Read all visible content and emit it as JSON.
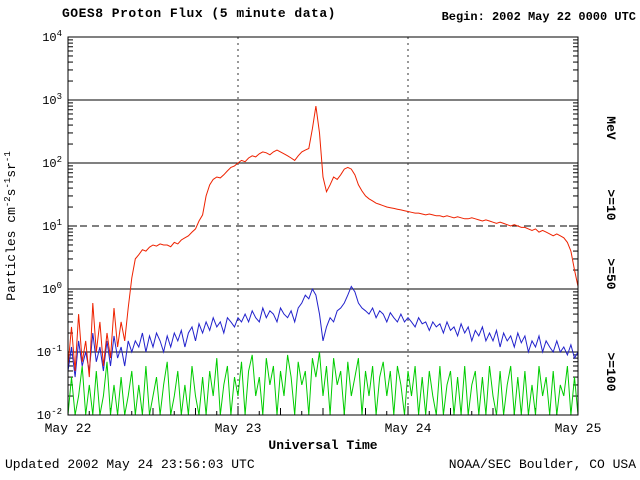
{
  "header": {
    "title": "GOES8 Proton Flux (5 minute data)",
    "begin": "Begin: 2002 May 22 0000 UTC"
  },
  "footer": {
    "updated": "Updated 2002 May 24 23:56:03 UTC",
    "credit": "NOAA/SEC Boulder, CO USA"
  },
  "chart_data": {
    "type": "line",
    "title": "GOES8 Proton Flux (5 minute data)",
    "xlabel": "Universal Time",
    "ylabel_parts": [
      {
        "t": "Particles cm",
        "sup": false
      },
      {
        "t": "-2",
        "sup": true
      },
      {
        "t": "s",
        "sup": false
      },
      {
        "t": "-1",
        "sup": true
      },
      {
        "t": "sr",
        "sup": false
      },
      {
        "t": "-1",
        "sup": true
      }
    ],
    "y_scale": "log",
    "ylim": [
      0.01,
      10000
    ],
    "y_tick_exponents": [
      4,
      3,
      2,
      1,
      0,
      -1,
      -2
    ],
    "x_range_hours": [
      0,
      72
    ],
    "x_ticks": [
      {
        "label": "May 22",
        "hour": 0
      },
      {
        "label": "May 23",
        "hour": 24
      },
      {
        "label": "May 24",
        "hour": 48
      },
      {
        "label": "May 25",
        "hour": 72
      }
    ],
    "grid": {
      "solid_decades": [
        3,
        2,
        0,
        -1
      ],
      "dashed_decades": [
        1
      ],
      "vertical_dotted_hours": [
        24,
        48
      ]
    },
    "right_axis": {
      "labels": [
        {
          "text": "MeV",
          "color": "#000000"
        },
        {
          "text": ">=10",
          "color": "#ee2200"
        },
        {
          "text": ">=50",
          "color": "#2222cc"
        },
        {
          "text": ">=100",
          "color": "#00cc00"
        }
      ]
    },
    "series": [
      {
        "name": "Protons >=10 MeV",
        "label": ">=10",
        "color": "#ee2200",
        "x_start_hours": 0,
        "x_step_hours": 0.5,
        "values": [
          0.06,
          0.25,
          0.05,
          0.4,
          0.07,
          0.15,
          0.04,
          0.6,
          0.1,
          0.3,
          0.06,
          0.2,
          0.08,
          0.5,
          0.12,
          0.3,
          0.15,
          0.5,
          1.5,
          3,
          3.5,
          4.2,
          4,
          4.6,
          5,
          4.8,
          5.2,
          5,
          5,
          4.7,
          5.5,
          5.2,
          6,
          6.5,
          7,
          8,
          9,
          12,
          15,
          30,
          45,
          55,
          60,
          58,
          65,
          75,
          85,
          90,
          100,
          110,
          105,
          120,
          130,
          125,
          140,
          150,
          145,
          135,
          150,
          160,
          150,
          140,
          130,
          120,
          110,
          130,
          150,
          160,
          170,
          350,
          800,
          300,
          60,
          35,
          45,
          60,
          55,
          65,
          80,
          85,
          80,
          65,
          45,
          36,
          30,
          27,
          25,
          23,
          22,
          21,
          20,
          19.5,
          19,
          18.5,
          18,
          17.5,
          17,
          16.5,
          16,
          16,
          15.5,
          15,
          15.5,
          15,
          14.5,
          14.5,
          14,
          14.5,
          14,
          13.5,
          14,
          13.5,
          13,
          13,
          13.5,
          13,
          12.5,
          12,
          12.5,
          12,
          11.5,
          11,
          11.5,
          11,
          10.5,
          10,
          10.5,
          10,
          9.5,
          9.5,
          9,
          8.5,
          9,
          8,
          8.5,
          8,
          7.5,
          7,
          7.5,
          7,
          6.5,
          5.5,
          4,
          2,
          1.1
        ]
      },
      {
        "name": "Protons >=50 MeV",
        "label": ">=50",
        "color": "#2222cc",
        "x_start_hours": 0,
        "x_step_hours": 0.5,
        "values": [
          0.05,
          0.12,
          0.04,
          0.15,
          0.06,
          0.1,
          0.05,
          0.2,
          0.07,
          0.12,
          0.05,
          0.15,
          0.06,
          0.18,
          0.08,
          0.12,
          0.06,
          0.15,
          0.1,
          0.15,
          0.12,
          0.2,
          0.1,
          0.18,
          0.12,
          0.2,
          0.15,
          0.1,
          0.18,
          0.12,
          0.2,
          0.15,
          0.22,
          0.12,
          0.2,
          0.25,
          0.15,
          0.28,
          0.2,
          0.3,
          0.22,
          0.35,
          0.25,
          0.3,
          0.2,
          0.35,
          0.3,
          0.25,
          0.35,
          0.3,
          0.4,
          0.3,
          0.45,
          0.35,
          0.3,
          0.5,
          0.35,
          0.45,
          0.4,
          0.3,
          0.5,
          0.4,
          0.35,
          0.45,
          0.3,
          0.5,
          0.6,
          0.8,
          0.7,
          1,
          0.8,
          0.4,
          0.15,
          0.25,
          0.35,
          0.3,
          0.45,
          0.5,
          0.6,
          0.8,
          1.1,
          0.9,
          0.6,
          0.5,
          0.45,
          0.4,
          0.5,
          0.35,
          0.45,
          0.4,
          0.3,
          0.42,
          0.35,
          0.3,
          0.4,
          0.3,
          0.35,
          0.3,
          0.25,
          0.35,
          0.28,
          0.3,
          0.22,
          0.3,
          0.25,
          0.28,
          0.2,
          0.3,
          0.22,
          0.25,
          0.18,
          0.28,
          0.2,
          0.25,
          0.15,
          0.22,
          0.18,
          0.25,
          0.15,
          0.2,
          0.15,
          0.22,
          0.12,
          0.2,
          0.15,
          0.18,
          0.12,
          0.2,
          0.14,
          0.18,
          0.1,
          0.15,
          0.12,
          0.18,
          0.1,
          0.15,
          0.12,
          0.1,
          0.15,
          0.1,
          0.12,
          0.09,
          0.13,
          0.08,
          0.1
        ]
      },
      {
        "name": "Protons >=100 MeV",
        "label": ">=100",
        "color": "#00cc00",
        "x_start_hours": 0,
        "x_step_hours": 0.5,
        "values": [
          0.01,
          0.04,
          0.01,
          0.02,
          0.06,
          0.01,
          0.03,
          0.01,
          0.05,
          0.01,
          0.02,
          0.07,
          0.01,
          0.03,
          0.01,
          0.04,
          0.01,
          0.02,
          0.05,
          0.01,
          0.03,
          0.01,
          0.06,
          0.01,
          0.02,
          0.04,
          0.01,
          0.03,
          0.07,
          0.01,
          0.02,
          0.05,
          0.01,
          0.03,
          0.01,
          0.06,
          0.02,
          0.01,
          0.04,
          0.01,
          0.05,
          0.02,
          0.08,
          0.01,
          0.03,
          0.06,
          0.01,
          0.04,
          0.02,
          0.07,
          0.01,
          0.05,
          0.09,
          0.02,
          0.04,
          0.01,
          0.08,
          0.03,
          0.06,
          0.01,
          0.05,
          0.02,
          0.09,
          0.04,
          0.01,
          0.07,
          0.03,
          0.05,
          0.01,
          0.08,
          0.04,
          0.1,
          0.02,
          0.06,
          0.01,
          0.08,
          0.03,
          0.05,
          0.01,
          0.07,
          0.02,
          0.04,
          0.08,
          0.01,
          0.05,
          0.02,
          0.06,
          0.01,
          0.04,
          0.07,
          0.02,
          0.05,
          0.01,
          0.06,
          0.03,
          0.01,
          0.05,
          0.02,
          0.06,
          0.01,
          0.04,
          0.01,
          0.05,
          0.02,
          0.01,
          0.06,
          0.01,
          0.03,
          0.05,
          0.01,
          0.04,
          0.01,
          0.06,
          0.01,
          0.03,
          0.05,
          0.01,
          0.04,
          0.01,
          0.06,
          0.02,
          0.01,
          0.05,
          0.01,
          0.03,
          0.06,
          0.01,
          0.04,
          0.01,
          0.05,
          0.01,
          0.03,
          0.01,
          0.06,
          0.02,
          0.04,
          0.01,
          0.05,
          0.01,
          0.03,
          0.02,
          0.06,
          0.01,
          0.04,
          0.01
        ]
      }
    ]
  }
}
